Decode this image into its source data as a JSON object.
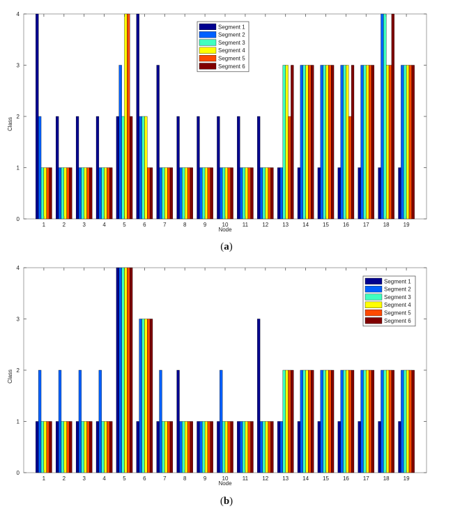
{
  "panels": [
    {
      "label_open": "(",
      "label_letter": "a",
      "label_close": ")"
    },
    {
      "label_open": "(",
      "label_letter": "b",
      "label_close": ")"
    }
  ],
  "chart_data": [
    {
      "type": "bar",
      "panel": "a",
      "xlabel": "Node",
      "ylabel": "Class",
      "ylim": [
        0,
        4
      ],
      "yticks": [
        "0",
        "1",
        "2",
        "3",
        "4"
      ],
      "categories": [
        "1",
        "2",
        "3",
        "4",
        "5",
        "6",
        "7",
        "8",
        "9",
        "10",
        "11",
        "12",
        "13",
        "14",
        "15",
        "16",
        "17",
        "18",
        "19"
      ],
      "legend_position": "top-center",
      "grid": false,
      "series": [
        {
          "name": "Segment 1",
          "color": "#00008f",
          "values": [
            4,
            2,
            2,
            2,
            2,
            4,
            3,
            2,
            2,
            2,
            2,
            2,
            1,
            1,
            1,
            1,
            1,
            1,
            1
          ]
        },
        {
          "name": "Segment 2",
          "color": "#0060ff",
          "values": [
            2,
            1,
            1,
            1,
            3,
            2,
            1,
            1,
            1,
            1,
            1,
            1,
            1,
            3,
            3,
            3,
            3,
            4,
            3
          ]
        },
        {
          "name": "Segment 3",
          "color": "#40ffbf",
          "values": [
            1,
            1,
            1,
            1,
            2,
            2,
            1,
            1,
            1,
            1,
            1,
            1,
            3,
            3,
            3,
            3,
            3,
            4,
            3
          ]
        },
        {
          "name": "Segment 4",
          "color": "#ffff00",
          "values": [
            1,
            1,
            1,
            1,
            4,
            2,
            1,
            1,
            1,
            1,
            1,
            1,
            3,
            3,
            3,
            3,
            3,
            3,
            3
          ]
        },
        {
          "name": "Segment 5",
          "color": "#ff4a00",
          "values": [
            1,
            1,
            1,
            1,
            4,
            1,
            1,
            1,
            1,
            1,
            1,
            1,
            2,
            3,
            3,
            2,
            3,
            3,
            3
          ]
        },
        {
          "name": "Segment 6",
          "color": "#800000",
          "values": [
            1,
            1,
            1,
            1,
            2,
            1,
            1,
            1,
            1,
            1,
            1,
            1,
            3,
            3,
            3,
            3,
            3,
            4,
            3
          ]
        }
      ]
    },
    {
      "type": "bar",
      "panel": "b",
      "xlabel": "Node",
      "ylabel": "Class",
      "ylim": [
        0,
        4
      ],
      "yticks": [
        "0",
        "1",
        "2",
        "3",
        "4"
      ],
      "categories": [
        "1",
        "2",
        "3",
        "4",
        "5",
        "6",
        "7",
        "8",
        "9",
        "10",
        "11",
        "12",
        "13",
        "14",
        "15",
        "16",
        "17",
        "18",
        "19"
      ],
      "legend_position": "top-right",
      "grid": false,
      "series": [
        {
          "name": "Segment 1",
          "color": "#00008f",
          "values": [
            1,
            1,
            1,
            1,
            4,
            1,
            1,
            2,
            1,
            1,
            1,
            3,
            1,
            1,
            1,
            1,
            1,
            1,
            1
          ]
        },
        {
          "name": "Segment 2",
          "color": "#0060ff",
          "values": [
            2,
            2,
            2,
            2,
            4,
            3,
            2,
            1,
            1,
            2,
            1,
            1,
            1,
            2,
            2,
            2,
            2,
            2,
            2
          ]
        },
        {
          "name": "Segment 3",
          "color": "#40ffbf",
          "values": [
            1,
            1,
            1,
            1,
            4,
            3,
            1,
            1,
            1,
            1,
            1,
            1,
            2,
            2,
            2,
            2,
            2,
            2,
            2
          ]
        },
        {
          "name": "Segment 4",
          "color": "#ffff00",
          "values": [
            1,
            1,
            1,
            1,
            4,
            3,
            1,
            1,
            1,
            1,
            1,
            1,
            2,
            2,
            2,
            2,
            2,
            2,
            2
          ]
        },
        {
          "name": "Segment 5",
          "color": "#ff4a00",
          "values": [
            1,
            1,
            1,
            1,
            4,
            3,
            1,
            1,
            1,
            1,
            1,
            1,
            2,
            2,
            2,
            2,
            2,
            2,
            2
          ]
        },
        {
          "name": "Segment 6",
          "color": "#800000",
          "values": [
            1,
            1,
            1,
            1,
            4,
            3,
            1,
            1,
            1,
            1,
            1,
            1,
            2,
            2,
            2,
            2,
            2,
            2,
            2
          ]
        }
      ]
    }
  ]
}
